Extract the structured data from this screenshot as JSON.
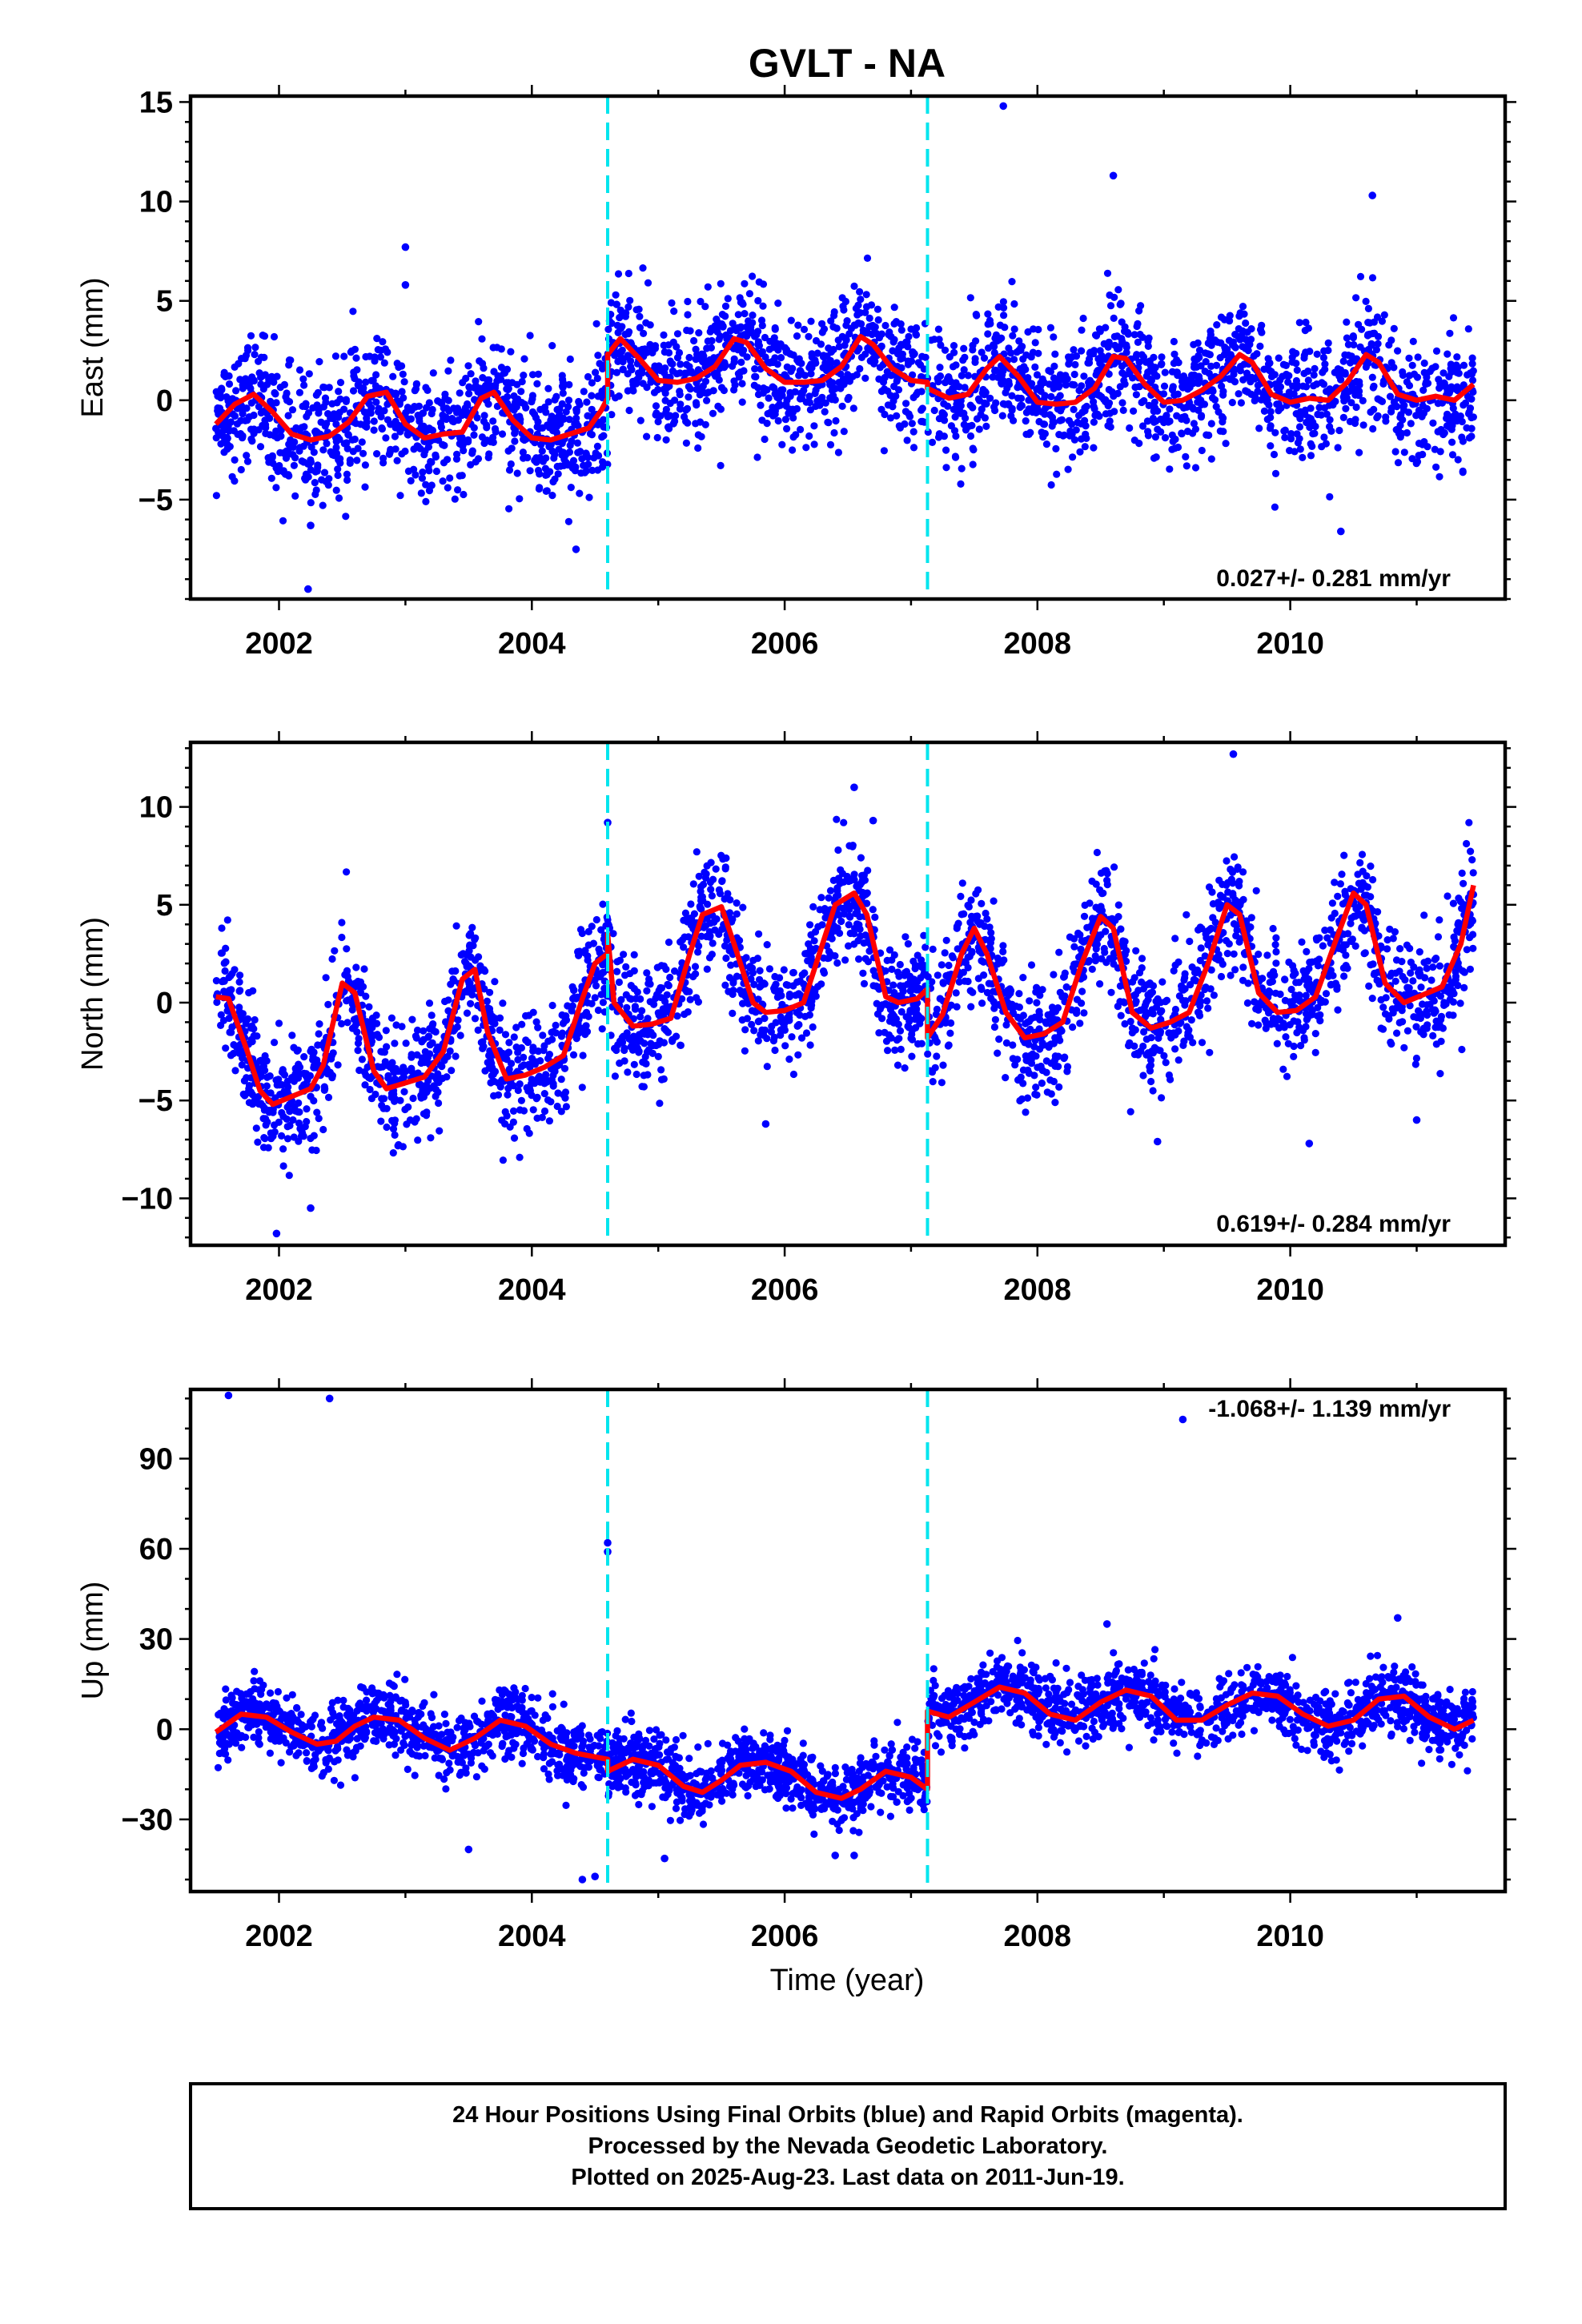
{
  "title": "GVLT - NA",
  "xlabel": "Time (year)",
  "colors": {
    "data": "#0000ff",
    "model": "#ff0000",
    "offset": "#00e5ee",
    "frame": "#000000"
  },
  "footer": [
    "24 Hour Positions Using Final Orbits (blue) and Rapid Orbits (magenta).",
    "Processed by the Nevada Geodetic Laboratory.",
    "Plotted on 2025-Aug-23. Last data on 2011-Jun-19."
  ],
  "chart_data": [
    {
      "type": "scatter",
      "ylabel": "East (mm)",
      "xlim": [
        2001.3,
        2011.7
      ],
      "ylim": [
        -10,
        15.3
      ],
      "xticks": [
        2002,
        2004,
        2006,
        2008,
        2010
      ],
      "yticks": [
        -5,
        0,
        5,
        10,
        15
      ],
      "yticklabels": [
        "−5",
        "0",
        "5",
        "10",
        "15"
      ],
      "rate": "0.027+/- 0.281 mm/yr",
      "offsets": [
        2004.6,
        2007.13
      ],
      "series": [
        {
          "role": "daily positions",
          "density_per_year": 300,
          "scatter_sd": 1.6,
          "marker": "dot",
          "outliers": [
            [
              2002.23,
              -9.5
            ],
            [
              2003.0,
              7.7
            ],
            [
              2003.0,
              5.8
            ],
            [
              2007.73,
              14.8
            ],
            [
              2008.6,
              11.3
            ],
            [
              2010.4,
              -6.6
            ],
            [
              2010.65,
              10.3
            ],
            [
              2004.35,
              -7.5
            ],
            [
              2002.25,
              -6.3
            ]
          ]
        },
        {
          "role": "trend model",
          "line": true,
          "x": [
            2001.5,
            2001.65,
            2001.8,
            2001.95,
            2002.1,
            2002.25,
            2002.4,
            2002.55,
            2002.7,
            2002.85,
            2003.0,
            2003.15,
            2003.3,
            2003.45,
            2003.6,
            2003.7,
            2003.85,
            2004.0,
            2004.15,
            2004.3,
            2004.45,
            2004.55,
            2004.6,
            2004.6,
            2004.7,
            2004.85,
            2005.0,
            2005.15,
            2005.3,
            2005.45,
            2005.6,
            2005.7,
            2005.85,
            2006.0,
            2006.15,
            2006.3,
            2006.45,
            2006.6,
            2006.7,
            2006.85,
            2007.0,
            2007.13,
            2007.13,
            2007.3,
            2007.45,
            2007.6,
            2007.7,
            2007.85,
            2008.0,
            2008.15,
            2008.3,
            2008.45,
            2008.6,
            2008.7,
            2008.85,
            2009.0,
            2009.15,
            2009.3,
            2009.45,
            2009.6,
            2009.7,
            2009.85,
            2010.0,
            2010.15,
            2010.3,
            2010.45,
            2010.6,
            2010.7,
            2010.85,
            2011.0,
            2011.15,
            2011.3,
            2011.45
          ],
          "y": [
            -1.2,
            -0.2,
            0.3,
            -0.6,
            -1.7,
            -2.0,
            -1.8,
            -1.1,
            0.2,
            0.4,
            -1.2,
            -1.9,
            -1.7,
            -1.6,
            0.1,
            0.4,
            -1.0,
            -1.9,
            -2.0,
            -1.7,
            -1.4,
            -0.5,
            0.1,
            2.3,
            3.1,
            2.1,
            1.0,
            0.9,
            1.1,
            1.7,
            3.1,
            2.9,
            1.6,
            0.9,
            0.9,
            1.0,
            1.7,
            3.2,
            2.8,
            1.6,
            1.0,
            0.9,
            0.6,
            0.1,
            0.3,
            1.6,
            2.2,
            1.2,
            -0.1,
            -0.2,
            -0.1,
            0.6,
            2.2,
            2.1,
            0.8,
            -0.1,
            0.0,
            0.5,
            1.2,
            2.3,
            1.9,
            0.3,
            -0.1,
            0.1,
            0.0,
            0.9,
            2.3,
            1.9,
            0.3,
            0.0,
            0.2,
            0.0,
            0.8
          ]
        }
      ]
    },
    {
      "type": "scatter",
      "ylabel": "North (mm)",
      "xlim": [
        2001.3,
        2011.7
      ],
      "ylim": [
        -12.4,
        13.3
      ],
      "xticks": [
        2002,
        2004,
        2006,
        2008,
        2010
      ],
      "yticks": [
        -10,
        -5,
        0,
        5,
        10
      ],
      "yticklabels": [
        "−10",
        "−5",
        "0",
        "5",
        "10"
      ],
      "rate": "0.619+/- 0.284 mm/yr",
      "offsets": [
        2004.6,
        2007.13
      ],
      "series": [
        {
          "role": "daily positions",
          "density_per_year": 300,
          "scatter_sd": 1.5,
          "marker": "dot",
          "outliers": [
            [
              2001.98,
              -11.8
            ],
            [
              2002.25,
              -10.5
            ],
            [
              2006.55,
              11.0
            ],
            [
              2006.7,
              9.3
            ],
            [
              2008.95,
              -7.1
            ],
            [
              2009.55,
              12.7
            ],
            [
              2010.15,
              -7.2
            ],
            [
              2011.0,
              -6.0
            ],
            [
              2005.85,
              -6.2
            ],
            [
              2004.6,
              9.2
            ]
          ]
        },
        {
          "role": "trend model",
          "line": true,
          "x": [
            2001.5,
            2001.6,
            2001.75,
            2001.85,
            2001.95,
            2002.1,
            2002.25,
            2002.35,
            2002.5,
            2002.6,
            2002.75,
            2002.85,
            2003.0,
            2003.15,
            2003.3,
            2003.45,
            2003.55,
            2003.65,
            2003.8,
            2003.95,
            2004.1,
            2004.25,
            2004.4,
            2004.5,
            2004.6,
            2004.6,
            2004.65,
            2004.8,
            2004.95,
            2005.1,
            2005.25,
            2005.35,
            2005.5,
            2005.6,
            2005.75,
            2005.85,
            2006.0,
            2006.15,
            2006.3,
            2006.4,
            2006.55,
            2006.65,
            2006.8,
            2006.9,
            2007.05,
            2007.13,
            2007.13,
            2007.25,
            2007.4,
            2007.5,
            2007.6,
            2007.75,
            2007.9,
            2008.05,
            2008.2,
            2008.35,
            2008.5,
            2008.6,
            2008.75,
            2008.9,
            2009.05,
            2009.2,
            2009.35,
            2009.5,
            2009.6,
            2009.75,
            2009.9,
            2010.05,
            2010.2,
            2010.35,
            2010.5,
            2010.6,
            2010.75,
            2010.9,
            2011.05,
            2011.2,
            2011.35,
            2011.45
          ],
          "y": [
            0.3,
            0.2,
            -2.5,
            -4.5,
            -5.2,
            -4.8,
            -4.4,
            -3.2,
            1.0,
            0.5,
            -3.5,
            -4.4,
            -4.1,
            -3.8,
            -2.5,
            1.2,
            1.7,
            -1.5,
            -3.9,
            -3.7,
            -3.3,
            -2.7,
            0.2,
            2.0,
            2.5,
            3.5,
            0.0,
            -1.2,
            -1.1,
            -0.8,
            2.5,
            4.5,
            4.9,
            3.0,
            0.0,
            -0.5,
            -0.4,
            0.0,
            3.0,
            5.0,
            5.6,
            4.5,
            0.3,
            0.0,
            0.2,
            0.7,
            -1.8,
            -0.6,
            2.5,
            3.8,
            2.5,
            -0.5,
            -1.8,
            -1.6,
            -1.0,
            2.0,
            4.4,
            3.8,
            -0.5,
            -1.3,
            -1.0,
            -0.5,
            2.0,
            5.0,
            4.5,
            0.5,
            -0.5,
            -0.4,
            0.3,
            3.0,
            5.6,
            5.0,
            1.0,
            0.0,
            0.4,
            0.8,
            3.0,
            6.0
          ]
        }
      ]
    },
    {
      "type": "scatter",
      "ylabel": "Up (mm)",
      "xlim": [
        2001.3,
        2011.7
      ],
      "ylim": [
        -54,
        113
      ],
      "xticks": [
        2002,
        2004,
        2006,
        2008,
        2010
      ],
      "yticks": [
        -30,
        0,
        30,
        60,
        90
      ],
      "yticklabels": [
        "−30",
        "0",
        "30",
        "60",
        "90"
      ],
      "rate": "-1.068+/- 1.139 mm/yr",
      "offsets": [
        2004.6,
        2007.13
      ],
      "series": [
        {
          "role": "daily positions",
          "density_per_year": 300,
          "scatter_sd": 5.5,
          "marker": "dot",
          "outliers": [
            [
              2001.6,
              111
            ],
            [
              2002.4,
              110
            ],
            [
              2004.6,
              62
            ],
            [
              2004.6,
              59
            ],
            [
              2003.5,
              -40
            ],
            [
              2004.4,
              -50
            ],
            [
              2004.5,
              -49
            ],
            [
              2005.05,
              -43
            ],
            [
              2006.4,
              -42
            ],
            [
              2006.55,
              -42
            ],
            [
              2008.55,
              35
            ],
            [
              2009.15,
              103
            ],
            [
              2010.85,
              37
            ]
          ]
        },
        {
          "role": "trend model",
          "line": true,
          "x": [
            2001.5,
            2001.7,
            2001.9,
            2002.1,
            2002.3,
            2002.45,
            2002.6,
            2002.75,
            2002.95,
            2003.15,
            2003.35,
            2003.55,
            2003.75,
            2003.95,
            2004.15,
            2004.35,
            2004.6,
            2004.6,
            2004.8,
            2005.0,
            2005.2,
            2005.35,
            2005.5,
            2005.65,
            2005.85,
            2006.05,
            2006.25,
            2006.45,
            2006.6,
            2006.8,
            2007.0,
            2007.13,
            2007.13,
            2007.3,
            2007.5,
            2007.7,
            2007.9,
            2008.1,
            2008.3,
            2008.5,
            2008.7,
            2008.9,
            2009.1,
            2009.3,
            2009.5,
            2009.7,
            2009.9,
            2010.1,
            2010.3,
            2010.5,
            2010.7,
            2010.9,
            2011.1,
            2011.3,
            2011.45
          ],
          "y": [
            -1,
            5,
            4,
            -1,
            -5,
            -4,
            1,
            4,
            3,
            -3,
            -7,
            -3,
            3,
            1,
            -5,
            -8,
            -10,
            -14,
            -10,
            -12,
            -19,
            -21,
            -17,
            -12,
            -11,
            -14,
            -21,
            -23,
            -20,
            -14,
            -16,
            -20,
            6,
            4,
            9,
            14,
            12,
            5,
            3,
            9,
            13,
            11,
            3,
            3,
            8,
            12,
            11,
            5,
            1,
            3,
            10,
            11,
            4,
            0,
            3
          ]
        }
      ]
    }
  ]
}
